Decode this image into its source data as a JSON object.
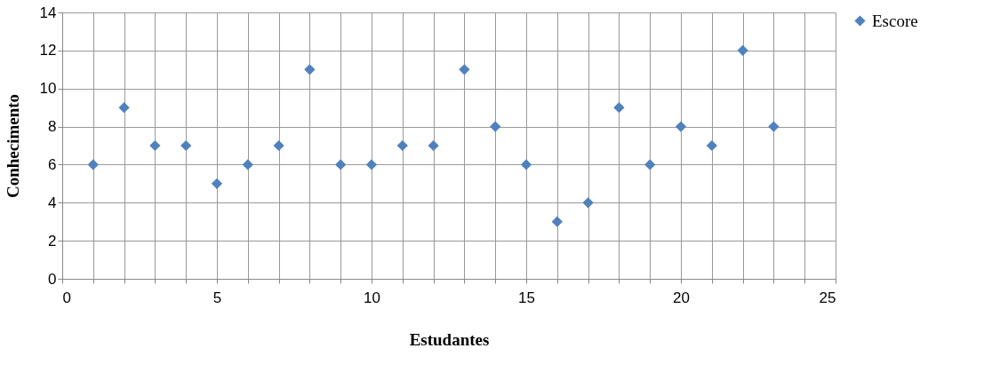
{
  "chart_data": {
    "type": "scatter",
    "xlabel": "Estudantes",
    "ylabel": "Conhecimento",
    "x": [
      1,
      2,
      3,
      4,
      5,
      6,
      7,
      8,
      9,
      10,
      11,
      12,
      13,
      14,
      15,
      16,
      17,
      18,
      19,
      20,
      21,
      22,
      23
    ],
    "series": [
      {
        "name": "Escore",
        "color": "#4f81bd",
        "values": [
          6,
          9,
          7,
          7,
          5,
          6,
          7,
          11,
          6,
          6,
          7,
          7,
          11,
          8,
          6,
          3,
          4,
          9,
          6,
          8,
          7,
          12,
          8
        ]
      }
    ],
    "xlim": [
      0,
      25
    ],
    "xticks": [
      0,
      {
        "value": 1,
        "label": null
      },
      {
        "value": 2,
        "label": null
      },
      {
        "value": 3,
        "label": null
      },
      {
        "value": 4,
        "label": null
      },
      5,
      {
        "value": 6,
        "label": null
      },
      {
        "value": 7,
        "label": null
      },
      {
        "value": 8,
        "label": null
      },
      {
        "value": 9,
        "label": null
      },
      10,
      {
        "value": 11,
        "label": null
      },
      {
        "value": 12,
        "label": null
      },
      {
        "value": 13,
        "label": null
      },
      {
        "value": 14,
        "label": null
      },
      15,
      {
        "value": 16,
        "label": null
      },
      {
        "value": 17,
        "label": null
      },
      {
        "value": 18,
        "label": null
      },
      {
        "value": 19,
        "label": null
      },
      20,
      {
        "value": 21,
        "label": null
      },
      {
        "value": 22,
        "label": null
      },
      {
        "value": 23,
        "label": null
      },
      {
        "value": 24,
        "label": null
      },
      25
    ],
    "ylim": [
      0,
      14
    ],
    "yticks": [
      0,
      2,
      4,
      6,
      8,
      10,
      12,
      14
    ],
    "grid": true,
    "legend": "right",
    "marker": "diamond"
  }
}
